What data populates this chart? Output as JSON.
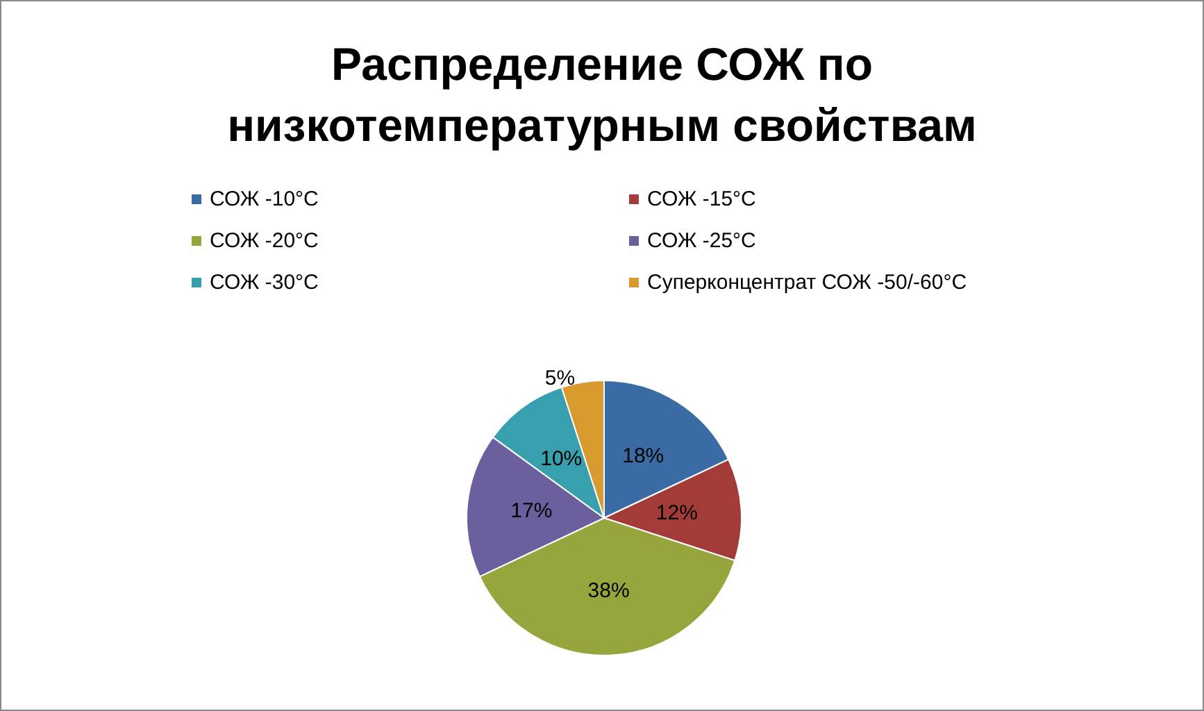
{
  "chart_data": {
    "type": "pie",
    "title": "Распределение СОЖ по\nнизкотемпературным свойствам",
    "categories": [
      "СОЖ -10°C",
      "СОЖ -15°C",
      "СОЖ -20°C",
      "СОЖ -25°C",
      "СОЖ -30°C",
      "Суперконцентрат СОЖ -50/-60°C"
    ],
    "values": [
      18,
      12,
      38,
      17,
      10,
      5
    ],
    "colors": [
      "#3b6ba5",
      "#a33b38",
      "#98a43c",
      "#6d5f9e",
      "#379fad",
      "#d8992e"
    ],
    "value_labels": [
      "18%",
      "12%",
      "38%",
      "17%",
      "10%",
      "5%"
    ],
    "legend": "top"
  }
}
